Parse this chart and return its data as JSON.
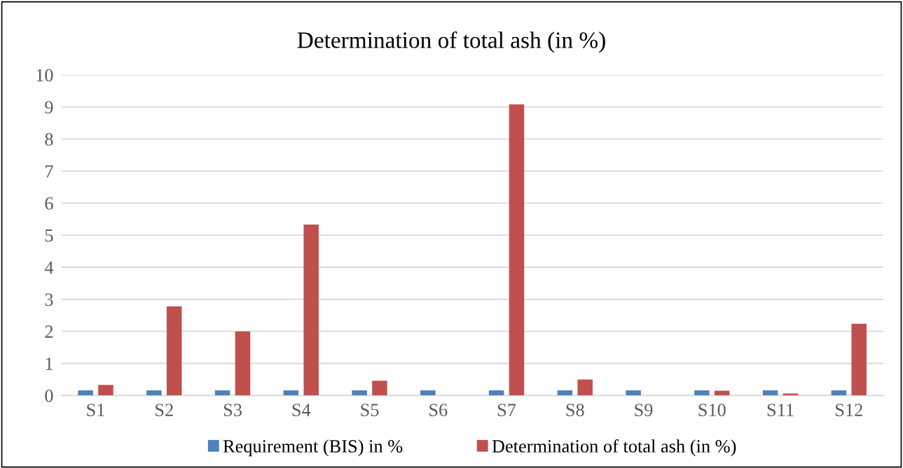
{
  "chart_data": {
    "type": "bar",
    "title": "Determination of total ash (in %)",
    "categories": [
      "S1",
      "S2",
      "S3",
      "S4",
      "S5",
      "S6",
      "S7",
      "S8",
      "S9",
      "S10",
      "S11",
      "S12"
    ],
    "series": [
      {
        "name": "Requirement (BIS) in %",
        "color": "#4f81bd",
        "values": [
          0.16,
          0.16,
          0.16,
          0.16,
          0.16,
          0.16,
          0.16,
          0.16,
          0.16,
          0.16,
          0.16,
          0.16
        ]
      },
      {
        "name": "Determination of total ash (in %)",
        "color": "#c0504d",
        "values": [
          0.33,
          2.78,
          2.0,
          5.33,
          0.46,
          0,
          9.08,
          0.5,
          0,
          0.15,
          0.06,
          2.24
        ]
      }
    ],
    "ylim": [
      0,
      10
    ],
    "yticks": [
      0,
      1,
      2,
      3,
      4,
      5,
      6,
      7,
      8,
      9,
      10
    ],
    "grid": "y",
    "legend": "bottom"
  }
}
